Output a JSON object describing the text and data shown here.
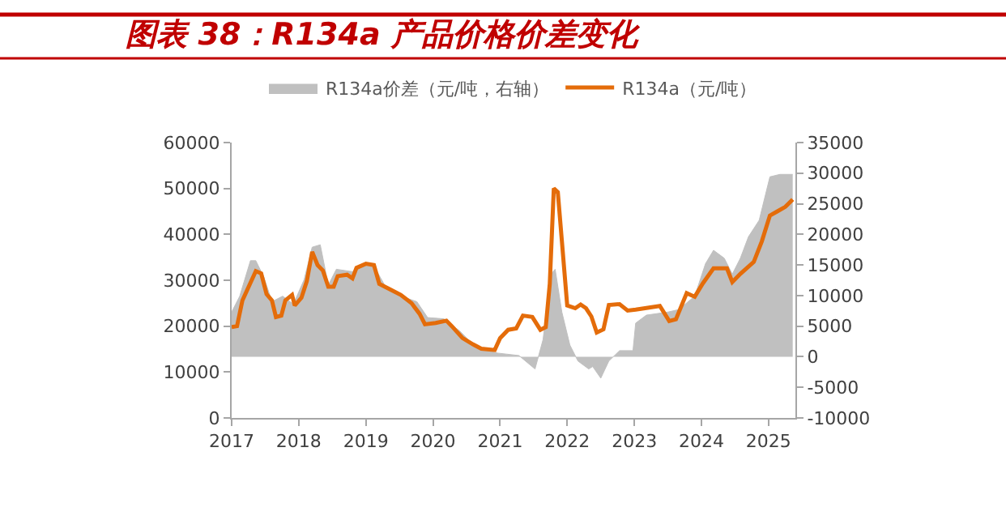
{
  "chart_data": {
    "type": "line",
    "title": "图表 38：R134a 产品价格价差变化",
    "legend": "top",
    "xlim": [
      2017,
      2025.4
    ],
    "xticks": [
      2017,
      2018,
      2019,
      2020,
      2021,
      2022,
      2023,
      2024,
      2025
    ],
    "ylim": [
      0,
      60000
    ],
    "yticks": [
      0,
      10000,
      20000,
      30000,
      40000,
      50000,
      60000
    ],
    "y2lim": [
      -10000,
      35000
    ],
    "y2ticks": [
      -10000,
      -5000,
      0,
      5000,
      10000,
      15000,
      20000,
      25000,
      30000,
      35000
    ],
    "series": [
      {
        "name": "R134a价差（元/吨，右轴）",
        "type": "area",
        "axis": "y2",
        "color": "#c0c0c0",
        "x": [
          2017.0,
          2017.12,
          2017.28,
          2017.36,
          2017.48,
          2017.6,
          2017.76,
          2017.92,
          2018.08,
          2018.2,
          2018.32,
          2018.44,
          2018.56,
          2018.8,
          2018.96,
          2019.12,
          2019.28,
          2019.52,
          2019.76,
          2019.92,
          2020.16,
          2020.4,
          2020.64,
          2020.96,
          2021.28,
          2021.52,
          2021.64,
          2021.76,
          2021.82,
          2021.92,
          2022.04,
          2022.16,
          2022.32,
          2022.38,
          2022.5,
          2022.62,
          2022.78,
          2022.98,
          2023.02,
          2023.18,
          2023.5,
          2023.66,
          2023.9,
          2024.06,
          2024.18,
          2024.34,
          2024.46,
          2024.58,
          2024.7,
          2024.86,
          2025.02,
          2025.17,
          2025.36
        ],
        "values": [
          7300,
          9900,
          15700,
          15700,
          13000,
          9000,
          9900,
          8600,
          12600,
          17900,
          18300,
          11700,
          14300,
          13900,
          15200,
          14800,
          11700,
          9900,
          9000,
          6400,
          6200,
          4200,
          1500,
          600,
          200,
          -2000,
          2800,
          13500,
          14300,
          7300,
          1900,
          -700,
          -2000,
          -1600,
          -3500,
          -700,
          1000,
          1000,
          5500,
          6800,
          7300,
          7700,
          9900,
          15200,
          17400,
          16100,
          13500,
          16100,
          19600,
          22300,
          29400,
          29800,
          29800
        ]
      },
      {
        "name": "R134a（元/吨）",
        "color": "#e46c0a",
        "x": [
          2017.0,
          2017.08,
          2017.16,
          2017.36,
          2017.44,
          2017.52,
          2017.6,
          2017.66,
          2017.74,
          2017.8,
          2017.9,
          2017.94,
          2018.04,
          2018.12,
          2018.2,
          2018.28,
          2018.36,
          2018.44,
          2018.52,
          2018.58,
          2018.72,
          2018.8,
          2018.86,
          2019.0,
          2019.12,
          2019.2,
          2019.36,
          2019.52,
          2019.68,
          2019.8,
          2019.88,
          2020.04,
          2020.2,
          2020.28,
          2020.44,
          2020.6,
          2020.72,
          2020.92,
          2021.0,
          2021.12,
          2021.24,
          2021.34,
          2021.48,
          2021.6,
          2021.68,
          2021.74,
          2021.8,
          2021.86,
          2021.92,
          2022.0,
          2022.12,
          2022.2,
          2022.28,
          2022.36,
          2022.44,
          2022.54,
          2022.62,
          2022.78,
          2022.9,
          2023.02,
          2023.38,
          2023.52,
          2023.62,
          2023.78,
          2023.9,
          2024.02,
          2024.18,
          2024.38,
          2024.46,
          2024.58,
          2024.78,
          2024.9,
          2025.02,
          2025.13,
          2025.25,
          2025.36
        ],
        "values": [
          19800,
          20000,
          25600,
          32000,
          31500,
          27000,
          25600,
          22000,
          22300,
          25600,
          26800,
          24500,
          26200,
          29800,
          36200,
          33300,
          32100,
          28600,
          28600,
          30900,
          31200,
          30400,
          32700,
          33600,
          33300,
          29200,
          28000,
          26800,
          25000,
          22700,
          20400,
          20700,
          21200,
          20000,
          17400,
          16000,
          15100,
          14800,
          17400,
          19200,
          19500,
          22300,
          22000,
          19200,
          19800,
          29200,
          50000,
          49200,
          38600,
          24500,
          23900,
          24700,
          23900,
          22100,
          18600,
          19300,
          24600,
          24800,
          23400,
          23600,
          24400,
          21100,
          21500,
          27200,
          26400,
          29300,
          32600,
          32600,
          29600,
          31400,
          34000,
          38500,
          44100,
          45000,
          46000,
          47600
        ]
      }
    ]
  }
}
